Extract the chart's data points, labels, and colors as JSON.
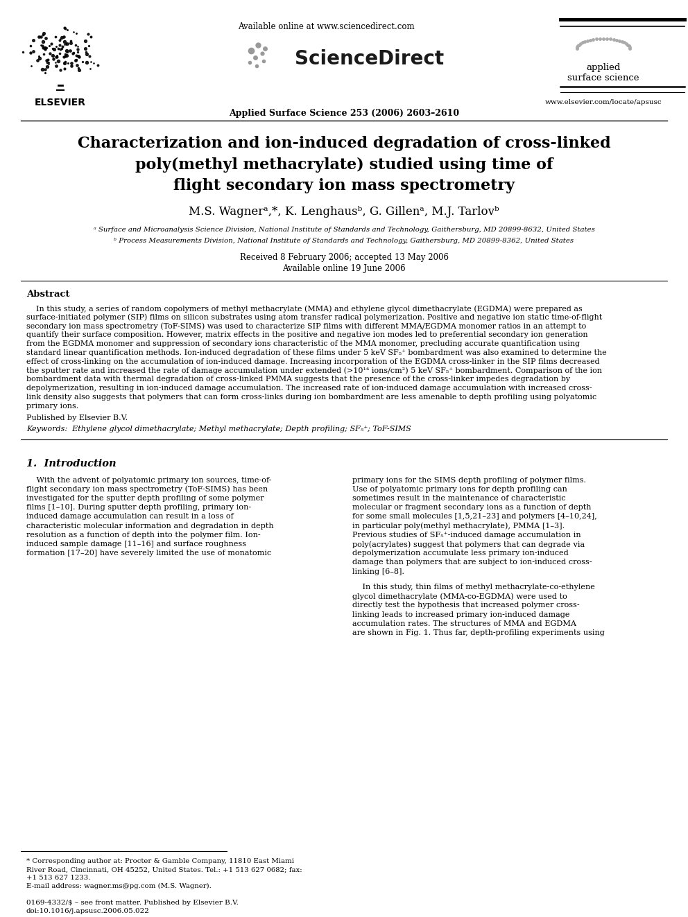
{
  "bg_color": "#ffffff",
  "title_line1": "Characterization and ion-induced degradation of cross-linked",
  "title_line2": "poly(methyl methacrylate) studied using time of",
  "title_line3": "flight secondary ion mass spectrometry",
  "authors": "M.S. Wagnerᵃ,*, K. Lenghausᵇ, G. Gillenᵃ, M.J. Tarlovᵇ",
  "affil_a": "ᵃ Surface and Microanalysis Science Division, National Institute of Standards and Technology, Gaithersburg, MD 20899-8632, United States",
  "affil_b": "ᵇ Process Measurements Division, National Institute of Standards and Technology, Gaithersburg, MD 20899-8362, United States",
  "received": "Received 8 February 2006; accepted 13 May 2006",
  "available": "Available online 19 June 2006",
  "journal": "Applied Surface Science 253 (2006) 2603–2610",
  "sciencedirect_url": "Available online at www.sciencedirect.com",
  "journal_url": "www.elsevier.com/locate/apsusc",
  "abstract_title": "Abstract",
  "published_by": "Published by Elsevier B.V.",
  "keywords": "Keywords:  Ethylene glycol dimethacrylate; Methyl methacrylate; Depth profiling; SF₅⁺; ToF-SIMS",
  "intro_title": "1.  Introduction",
  "footnote_star": "* Corresponding author at: Procter & Gamble Company, 11810 East Miami",
  "footnote_star2": "River Road, Cincinnati, OH 45252, United States. Tel.: +1 513 627 0682; fax:",
  "footnote_star3": "+1 513 627 1233.",
  "footnote_email": "E-mail address: wagner.ms@pg.com (M.S. Wagner).",
  "footer_left": "0169-4332/$ – see front matter. Published by Elsevier B.V.",
  "footer_doi": "doi:10.1016/j.apsusc.2006.05.022",
  "abstract_lines": [
    "    In this study, a series of random copolymers of methyl methacrylate (MMA) and ethylene glycol dimethacrylate (EGDMA) were prepared as",
    "surface-initiated polymer (SIP) films on silicon substrates using atom transfer radical polymerization. Positive and negative ion static time-of-flight",
    "secondary ion mass spectrometry (ToF-SIMS) was used to characterize SIP films with different MMA/EGDMA monomer ratios in an attempt to",
    "quantify their surface composition. However, matrix effects in the positive and negative ion modes led to preferential secondary ion generation",
    "from the EGDMA monomer and suppression of secondary ions characteristic of the MMA monomer, precluding accurate quantification using",
    "standard linear quantification methods. Ion-induced degradation of these films under 5 keV SF₅⁺ bombardment was also examined to determine the",
    "effect of cross-linking on the accumulation of ion-induced damage. Increasing incorporation of the EGDMA cross-linker in the SIP films decreased",
    "the sputter rate and increased the rate of damage accumulation under extended (>10¹⁴ ions/cm²) 5 keV SF₅⁺ bombardment. Comparison of the ion",
    "bombardment data with thermal degradation of cross-linked PMMA suggests that the presence of the cross-linker impedes degradation by",
    "depolymerization, resulting in ion-induced damage accumulation. The increased rate of ion-induced damage accumulation with increased cross-",
    "link density also suggests that polymers that can form cross-links during ion bombardment are less amenable to depth profiling using polyatomic",
    "primary ions."
  ],
  "intro_col1_lines": [
    "    With the advent of polyatomic primary ion sources, time-of-",
    "flight secondary ion mass spectrometry (ToF-SIMS) has been",
    "investigated for the sputter depth profiling of some polymer",
    "films [1–10]. During sputter depth profiling, primary ion-",
    "induced damage accumulation can result in a loss of",
    "characteristic molecular information and degradation in depth",
    "resolution as a function of depth into the polymer film. Ion-",
    "induced sample damage [11–16] and surface roughness",
    "formation [17–20] have severely limited the use of monatomic"
  ],
  "intro_col2_lines": [
    "primary ions for the SIMS depth profiling of polymer films.",
    "Use of polyatomic primary ions for depth profiling can",
    "sometimes result in the maintenance of characteristic",
    "molecular or fragment secondary ions as a function of depth",
    "for some small molecules [1,5,21–23] and polymers [4–10,24],",
    "in particular poly(methyl methacrylate), PMMA [1–3].",
    "Previous studies of SF₅⁺-induced damage accumulation in",
    "poly(acrylates) suggest that polymers that can degrade via",
    "depolymerization accumulate less primary ion-induced",
    "damage than polymers that are subject to ion-induced cross-",
    "linking [6–8]."
  ],
  "intro_col2b_lines": [
    "    In this study, thin films of methyl methacrylate-co-ethylene",
    "glycol dimethacrylate (MMA-co-EGDMA) were used to",
    "directly test the hypothesis that increased polymer cross-",
    "linking leads to increased primary ion-induced damage",
    "accumulation rates. The structures of MMA and EGDMA",
    "are shown in Fig. 1. Thus far, depth-profiling experiments using"
  ]
}
